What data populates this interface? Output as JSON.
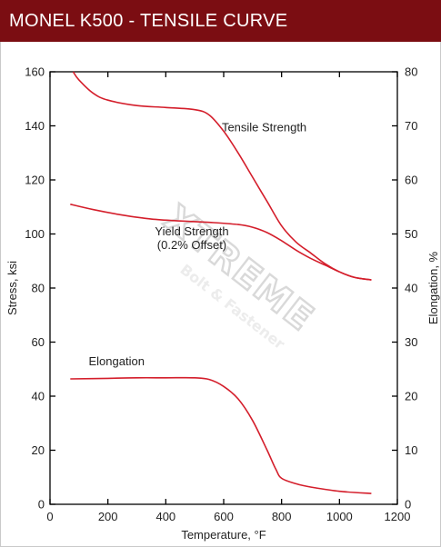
{
  "header": {
    "title": "MONEL K500 - TENSILE CURVE"
  },
  "watermark": {
    "line1": "XTREME",
    "line2": "Bolt & Fastener"
  },
  "colors": {
    "header_bg": "#7b0d12",
    "curve": "#d41e2b",
    "axis": "#000000"
  },
  "chart_data": {
    "type": "line",
    "title": "",
    "xlabel": "Temperature, °F",
    "ylabel": "Stress, ksi",
    "y2label": "Elongation, %",
    "xlim": [
      0,
      1200
    ],
    "ylim": [
      0,
      160
    ],
    "y2lim": [
      0,
      80
    ],
    "x_ticks": [
      0,
      200,
      400,
      600,
      800,
      1000,
      1200
    ],
    "y_ticks": [
      0,
      20,
      40,
      60,
      80,
      100,
      120,
      140,
      160
    ],
    "y2_ticks": [
      0,
      10,
      20,
      30,
      40,
      50,
      60,
      70,
      80
    ],
    "grid": false,
    "legend": "none",
    "series": [
      {
        "name": "Tensile Strength",
        "axis": "left",
        "x": [
          80,
          100,
          150,
          200,
          300,
          400,
          500,
          550,
          600,
          650,
          700,
          750,
          800,
          850,
          900,
          950,
          1000,
          1050,
          1110
        ],
        "y": [
          160,
          157,
          152,
          149.5,
          147.5,
          146.8,
          146,
          144,
          138,
          130,
          121,
          112,
          103,
          97,
          93,
          89,
          86,
          84,
          83
        ],
        "label": {
          "text": "Tensile Strength",
          "x": 740,
          "y": 138
        }
      },
      {
        "name": "Yield Strength",
        "name2": "(0.2% Offset)",
        "axis": "left",
        "x": [
          70,
          150,
          250,
          350,
          450,
          550,
          650,
          700,
          750,
          800,
          850,
          900,
          950,
          1000,
          1050,
          1110
        ],
        "y": [
          111,
          109,
          107,
          105.5,
          104.8,
          104.3,
          103.5,
          102.5,
          100.5,
          97.5,
          94,
          91,
          88.5,
          86,
          84,
          83
        ],
        "label": {
          "text": "Yield Strength",
          "text2": "(0.2% Offset)",
          "x": 490,
          "y": 99.5
        }
      },
      {
        "name": "Elongation",
        "axis": "right",
        "x": [
          70,
          200,
          300,
          400,
          500,
          550,
          600,
          650,
          700,
          750,
          780,
          800,
          850,
          900,
          1000,
          1110
        ],
        "y": [
          23.2,
          23.3,
          23.4,
          23.4,
          23.4,
          23.1,
          21.8,
          19.5,
          15.5,
          10,
          6.5,
          4.8,
          3.8,
          3.2,
          2.4,
          2
        ],
        "label": {
          "text": "Elongation",
          "x": 230,
          "y": 51.5
        }
      }
    ]
  }
}
